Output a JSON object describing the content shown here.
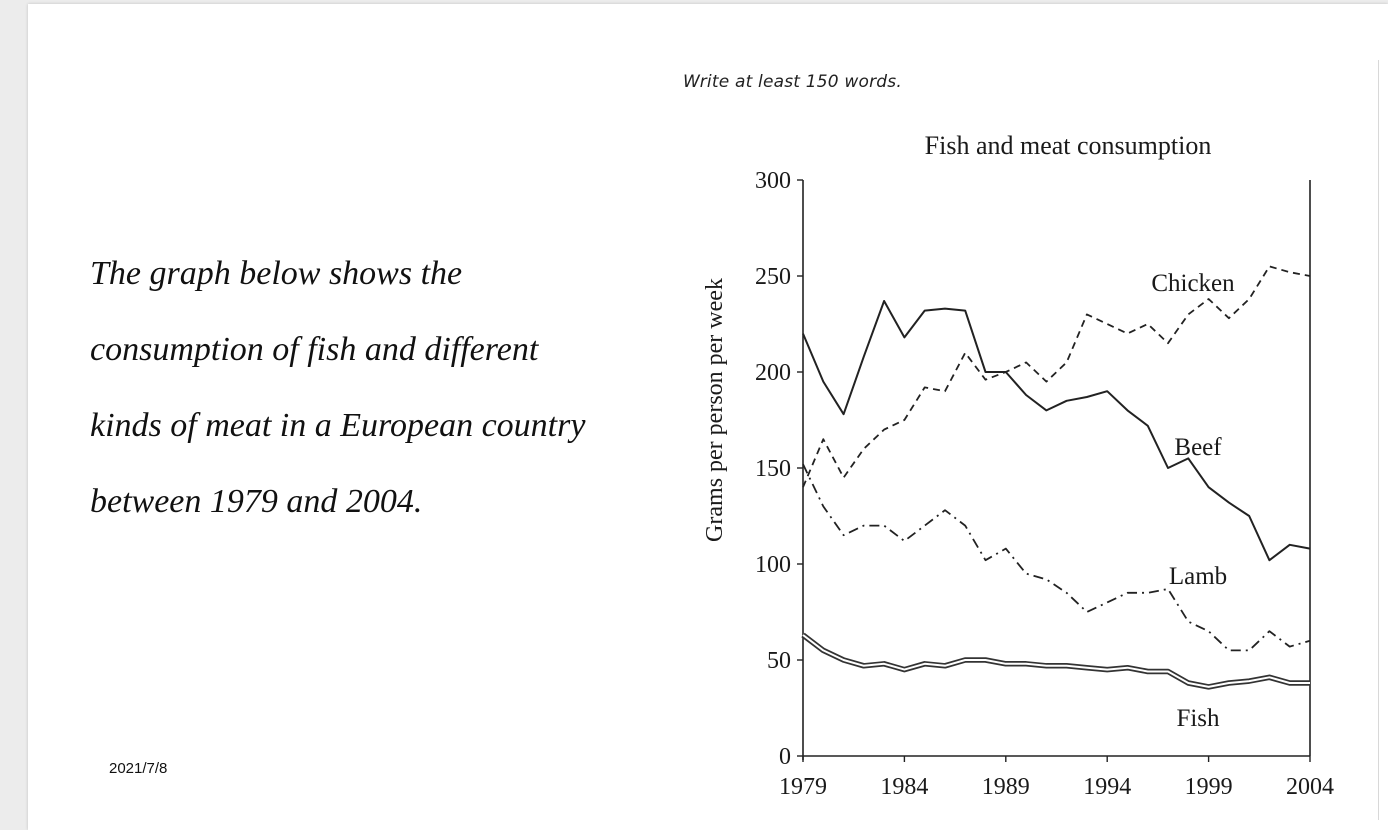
{
  "instruction": "Write at least 150 words.",
  "prompt_lines": [
    "The graph below shows the",
    "consumption of fish and different",
    "kinds of meat in a European country",
    "between 1979 and 2004."
  ],
  "date": "2021/7/8",
  "chart_data": {
    "type": "line",
    "title": "Fish and meat consumption",
    "xlabel": "",
    "ylabel": "Grams per person per week",
    "xlim": [
      1979,
      2004
    ],
    "ylim": [
      0,
      300
    ],
    "xticks": [
      1979,
      1984,
      1989,
      1994,
      1999,
      2004
    ],
    "yticks": [
      0,
      50,
      100,
      150,
      200,
      250,
      300
    ],
    "grid": false,
    "legend": "inline labels",
    "x": [
      1979,
      1980,
      1981,
      1982,
      1983,
      1984,
      1985,
      1986,
      1987,
      1988,
      1989,
      1990,
      1991,
      1992,
      1993,
      1994,
      1995,
      1996,
      1997,
      1998,
      1999,
      2000,
      2001,
      2002,
      2003,
      2004
    ],
    "series": [
      {
        "name": "Chicken",
        "style": "dashed",
        "values": [
          140,
          165,
          145,
          160,
          170,
          175,
          192,
          190,
          210,
          196,
          200,
          205,
          195,
          205,
          230,
          225,
          220,
          225,
          215,
          230,
          238,
          228,
          238,
          255,
          252,
          250
        ]
      },
      {
        "name": "Beef",
        "style": "solid",
        "values": [
          220,
          195,
          178,
          208,
          237,
          218,
          232,
          233,
          232,
          200,
          200,
          188,
          180,
          185,
          187,
          190,
          180,
          172,
          150,
          155,
          140,
          132,
          125,
          102,
          110,
          108
        ]
      },
      {
        "name": "Lamb",
        "style": "dash-dot",
        "values": [
          152,
          130,
          115,
          120,
          120,
          112,
          120,
          128,
          120,
          102,
          108,
          95,
          92,
          85,
          75,
          80,
          85,
          85,
          87,
          70,
          65,
          55,
          55,
          65,
          57,
          60
        ]
      },
      {
        "name": "Fish",
        "style": "double",
        "values": [
          63,
          55,
          50,
          47,
          48,
          45,
          48,
          47,
          50,
          50,
          48,
          48,
          47,
          47,
          46,
          45,
          46,
          44,
          44,
          38,
          36,
          38,
          39,
          41,
          38,
          38
        ]
      }
    ]
  }
}
